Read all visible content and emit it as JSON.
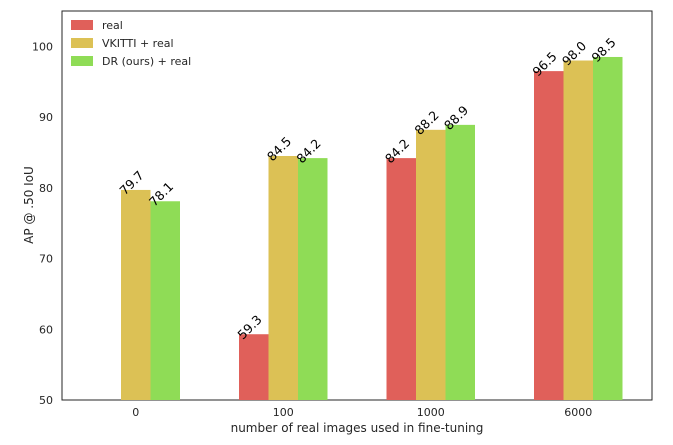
{
  "chart_data": {
    "type": "bar",
    "title": "",
    "xlabel": "number of real images used in fine-tuning",
    "ylabel": "AP @ .50 IoU",
    "categories": [
      "0",
      "100",
      "1000",
      "6000"
    ],
    "ylim": [
      50,
      105
    ],
    "yticks": [
      50,
      60,
      70,
      80,
      90,
      100
    ],
    "grid": false,
    "legend_position": "top-left",
    "series": [
      {
        "name": "real",
        "color": "#e0605a",
        "values": [
          null,
          59.3,
          84.2,
          96.5
        ],
        "labels": [
          null,
          "59.3",
          "84.2",
          "96.5"
        ]
      },
      {
        "name": "VKITTI + real",
        "color": "#dcc155",
        "values": [
          79.7,
          84.5,
          88.2,
          98.0
        ],
        "labels": [
          "79.7",
          "84.5",
          "88.2",
          "98.0"
        ]
      },
      {
        "name": "DR (ours) + real",
        "color": "#8fdc56",
        "values": [
          78.1,
          84.2,
          88.9,
          98.5
        ],
        "labels": [
          "78.1",
          "84.2",
          "88.9",
          "98.5"
        ]
      }
    ]
  }
}
